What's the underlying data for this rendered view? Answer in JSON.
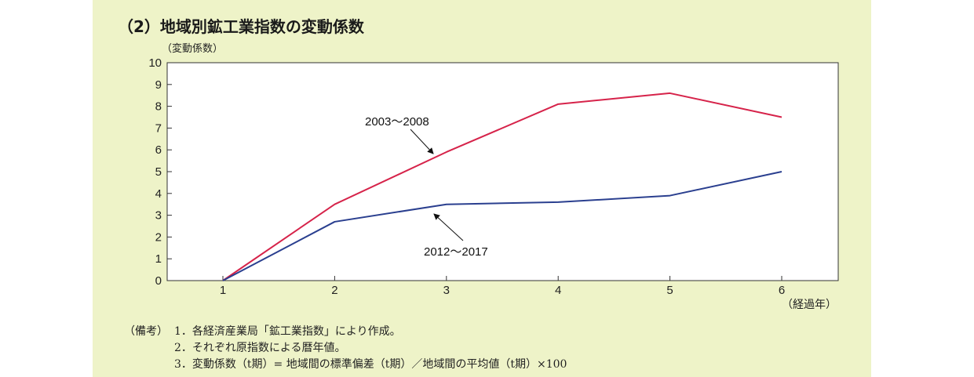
{
  "title": "（2）地域別鉱工業指数の変動係数",
  "notes_label": "（備考）",
  "notes": [
    "1．各経済産業局「鉱工業指数」により作成。",
    "2．それぞれ原指数による暦年値。",
    "3．変動係数（t期）= 地域間の標準偏差（t期）／地域間の平均値（t期）×100"
  ],
  "chart_data": {
    "type": "line",
    "title": "（2）地域別鉱工業指数の変動係数",
    "ylabel": "（変動係数）",
    "xlabel": "（経過年）",
    "x": [
      1,
      2,
      3,
      4,
      5,
      6
    ],
    "ylim": [
      0,
      10
    ],
    "yticks": [
      0,
      1,
      2,
      3,
      4,
      5,
      6,
      7,
      8,
      9,
      10
    ],
    "grid": false,
    "series": [
      {
        "name": "2003～2008",
        "color": "#d6234a",
        "values": [
          0,
          3.5,
          5.9,
          8.1,
          8.6,
          7.5
        ]
      },
      {
        "name": "2012～2017",
        "color": "#2a3f8f",
        "values": [
          0,
          2.7,
          3.5,
          3.6,
          3.9,
          5.0
        ]
      }
    ]
  }
}
